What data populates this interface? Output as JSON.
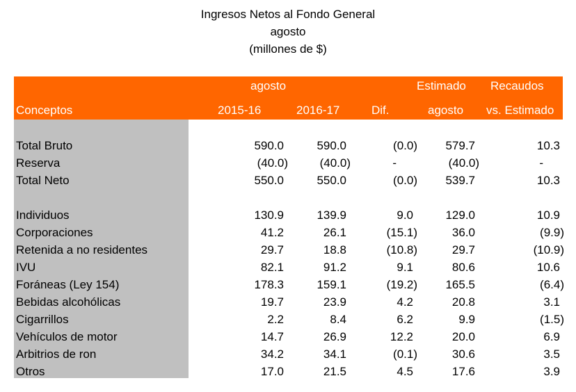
{
  "title": {
    "line1": "Ingresos Netos al Fondo General",
    "line2": "agosto",
    "line3": "(millones de $)"
  },
  "header": {
    "group_label": "agosto",
    "estimado_top": "Estimado",
    "recaudos_top": "Recaudos",
    "conceptos": "Conceptos",
    "col_2015": "2015-16",
    "col_2016": "2016-17",
    "col_dif": "Dif.",
    "estimado_bottom": "agosto",
    "recaudos_bottom": "vs. Estimado"
  },
  "colors": {
    "header_background": "#ff6600",
    "header_text": "#ffffff",
    "label_column_background": "#c0c0c0"
  },
  "rows": [
    {
      "concepto": "Total Bruto",
      "y2015": "590.0",
      "y2016": "590.0",
      "dif": "(0.0)",
      "estimado": "579.7",
      "vs": "10.3"
    },
    {
      "concepto": "Reserva",
      "y2015": "(40.0)",
      "y2016": "(40.0)",
      "dif": "-",
      "estimado": "(40.0)",
      "vs": "-"
    },
    {
      "concepto": "Total Neto",
      "y2015": "550.0",
      "y2016": "550.0",
      "dif": "(0.0)",
      "estimado": "539.7",
      "vs": "10.3"
    },
    {
      "concepto": "Individuos",
      "y2015": "130.9",
      "y2016": "139.9",
      "dif": "9.0",
      "estimado": "129.0",
      "vs": "10.9"
    },
    {
      "concepto": "Corporaciones",
      "y2015": "41.2",
      "y2016": "26.1",
      "dif": "(15.1)",
      "estimado": "36.0",
      "vs": "(9.9)"
    },
    {
      "concepto": "Retenida a no residentes",
      "y2015": "29.7",
      "y2016": "18.8",
      "dif": "(10.8)",
      "estimado": "29.7",
      "vs": "(10.9)"
    },
    {
      "concepto": "IVU",
      "y2015": "82.1",
      "y2016": "91.2",
      "dif": "9.1",
      "estimado": "80.6",
      "vs": "10.6"
    },
    {
      "concepto": "Foráneas (Ley 154)",
      "y2015": "178.3",
      "y2016": "159.1",
      "dif": "(19.2)",
      "estimado": "165.5",
      "vs": "(6.4)"
    },
    {
      "concepto": "Bebidas alcohólicas",
      "y2015": "19.7",
      "y2016": "23.9",
      "dif": "4.2",
      "estimado": "20.8",
      "vs": "3.1"
    },
    {
      "concepto": "Cigarrillos",
      "y2015": "2.2",
      "y2016": "8.4",
      "dif": "6.2",
      "estimado": "9.9",
      "vs": "(1.5)"
    },
    {
      "concepto": "Vehículos de motor",
      "y2015": "14.7",
      "y2016": "26.9",
      "dif": "12.2",
      "estimado": "20.0",
      "vs": "6.9"
    },
    {
      "concepto": "Arbitrios de ron",
      "y2015": "34.2",
      "y2016": "34.1",
      "dif": "(0.1)",
      "estimado": "30.6",
      "vs": "3.5"
    },
    {
      "concepto": "Otros",
      "y2015": "17.0",
      "y2016": "21.5",
      "dif": "4.5",
      "estimado": "17.6",
      "vs": "3.9"
    }
  ]
}
